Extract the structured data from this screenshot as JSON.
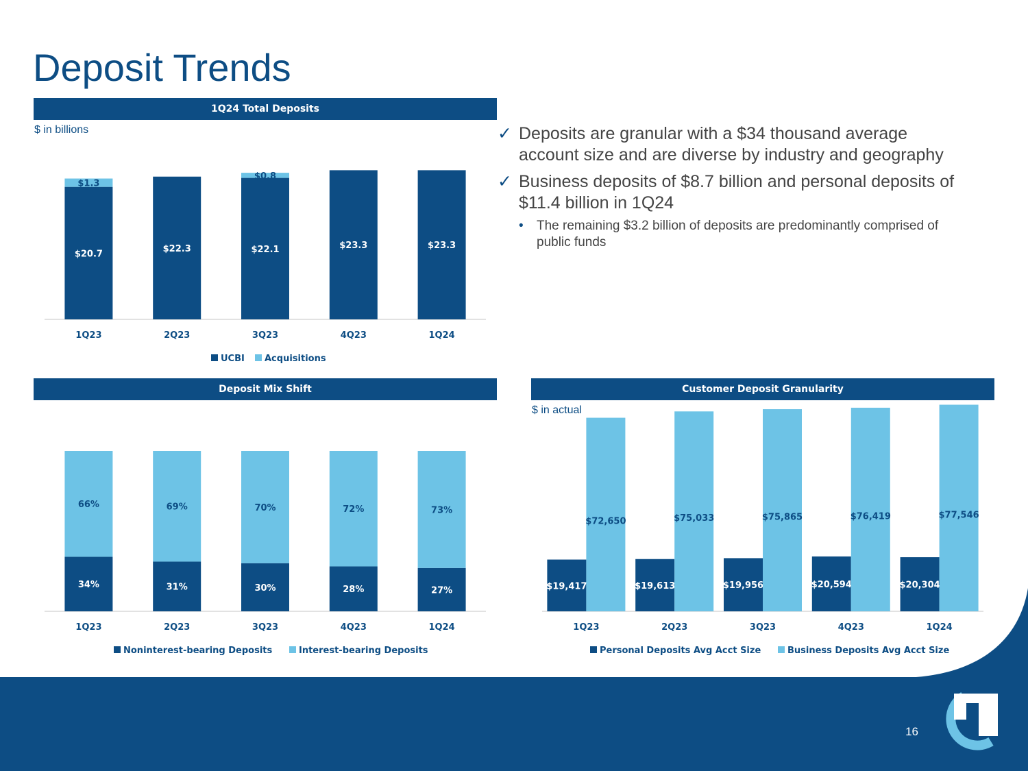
{
  "title": "Deposit Trends",
  "page_number": "16",
  "colors": {
    "dark_blue": "#0d4d84",
    "light_blue": "#6dc3e6"
  },
  "sections": {
    "total_deposits": {
      "header": "1Q24 Total Deposits",
      "unit": "$ in billions"
    },
    "mix_shift": {
      "header": "Deposit Mix Shift"
    },
    "granularity": {
      "header": "Customer Deposit Granularity",
      "unit": "$ in actual"
    }
  },
  "bullets": {
    "items": [
      {
        "text": "Deposits are granular with a $34 thousand average account size and are diverse by industry and geography"
      },
      {
        "text": "Business deposits of $8.7 billion and personal deposits of $11.4 billion in 1Q24"
      }
    ],
    "sub_items": [
      {
        "text": "The remaining $3.2 billion of deposits are predominantly comprised of public funds"
      }
    ]
  },
  "chart_data": [
    {
      "type": "bar",
      "stacked": true,
      "title": "1Q24 Total Deposits",
      "unit": "$ in billions",
      "categories": [
        "1Q23",
        "2Q23",
        "3Q23",
        "4Q23",
        "1Q24"
      ],
      "series": [
        {
          "name": "UCBI",
          "color": "#0d4d84",
          "values": [
            20.7,
            22.3,
            22.1,
            23.3,
            23.3
          ],
          "labels": [
            "$20.7",
            "$22.3",
            "$22.1",
            "$23.3",
            "$23.3"
          ]
        },
        {
          "name": "Acquisitions",
          "color": "#6dc3e6",
          "values": [
            1.3,
            0,
            0.8,
            0,
            0
          ],
          "labels": [
            "$1.3",
            "",
            "$0.8",
            "",
            ""
          ]
        }
      ],
      "ylim": [
        0,
        25
      ],
      "legend": "bottom"
    },
    {
      "type": "bar",
      "stacked": true,
      "title": "Deposit Mix Shift",
      "categories": [
        "1Q23",
        "2Q23",
        "3Q23",
        "4Q23",
        "1Q24"
      ],
      "series": [
        {
          "name": "Noninterest-bearing Deposits",
          "color": "#0d4d84",
          "values": [
            34,
            31,
            30,
            28,
            27
          ],
          "labels": [
            "34%",
            "31%",
            "30%",
            "28%",
            "27%"
          ]
        },
        {
          "name": "Interest-bearing Deposits",
          "color": "#6dc3e6",
          "values": [
            66,
            69,
            70,
            72,
            73
          ],
          "labels": [
            "66%",
            "69%",
            "70%",
            "72%",
            "73%"
          ]
        }
      ],
      "ylim": [
        0,
        100
      ],
      "legend": "bottom"
    },
    {
      "type": "bar",
      "stacked": false,
      "title": "Customer Deposit Granularity",
      "unit": "$ in actual",
      "categories": [
        "1Q23",
        "2Q23",
        "3Q23",
        "4Q23",
        "1Q24"
      ],
      "series": [
        {
          "name": "Personal Deposits Avg Acct Size",
          "color": "#0d4d84",
          "values": [
            19417,
            19613,
            19956,
            20594,
            20304
          ],
          "labels": [
            "$19,417",
            "$19,613",
            "$19,956",
            "$20,594",
            "$20,304"
          ]
        },
        {
          "name": "Business Deposits Avg Acct Size",
          "color": "#6dc3e6",
          "values": [
            72650,
            75033,
            75865,
            76419,
            77546
          ],
          "labels": [
            "$72,650",
            "$75,033",
            "$75,865",
            "$76,419",
            "$77,546"
          ]
        }
      ],
      "ylim": [
        0,
        80000
      ],
      "legend": "bottom"
    }
  ]
}
